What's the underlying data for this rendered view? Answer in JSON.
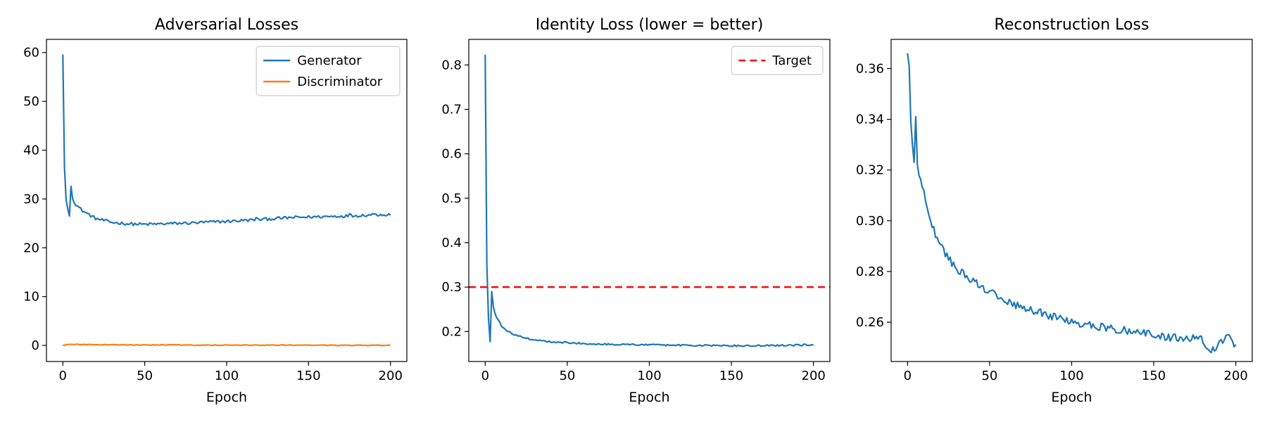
{
  "chart_data": [
    {
      "type": "line",
      "title": "Adversarial Losses",
      "xlabel": "Epoch",
      "ylabel": "",
      "xlim": [
        -10,
        210
      ],
      "ylim": [
        -3.3,
        62.7
      ],
      "xticks": [
        0,
        50,
        100,
        150,
        200
      ],
      "yticks": [
        0,
        10,
        20,
        30,
        40,
        50,
        60
      ],
      "ytick_decimals": 0,
      "legend": "top-right",
      "grid": false,
      "series": [
        {
          "name": "Generator",
          "color": "#1f77b4",
          "dash": "",
          "anchors": [
            [
              0,
              59.6
            ],
            [
              1,
              36.5
            ],
            [
              2,
              29.8
            ],
            [
              3,
              28.0
            ],
            [
              4,
              26.5
            ],
            [
              5,
              32.6
            ],
            [
              6,
              30.0
            ],
            [
              8,
              28.9
            ],
            [
              10,
              28.2
            ],
            [
              12,
              27.6
            ],
            [
              15,
              27.0
            ],
            [
              20,
              26.0
            ],
            [
              25,
              25.6
            ],
            [
              30,
              25.2
            ],
            [
              40,
              24.9
            ],
            [
              50,
              24.8
            ],
            [
              60,
              24.9
            ],
            [
              70,
              25.0
            ],
            [
              80,
              25.1
            ],
            [
              90,
              25.3
            ],
            [
              100,
              25.4
            ],
            [
              110,
              25.6
            ],
            [
              120,
              25.8
            ],
            [
              130,
              26.0
            ],
            [
              140,
              26.2
            ],
            [
              150,
              26.3
            ],
            [
              160,
              26.4
            ],
            [
              170,
              26.5
            ],
            [
              180,
              26.6
            ],
            [
              190,
              26.8
            ],
            [
              200,
              26.8
            ]
          ],
          "spikes": [
            [
              5,
              32.6
            ],
            [
              118,
              26.2
            ],
            [
              175,
              27.0
            ],
            [
              189,
              27.0
            ]
          ],
          "noise": 0.3
        },
        {
          "name": "Discriminator",
          "color": "#ff7f0e",
          "dash": "",
          "anchors": [
            [
              0,
              0.05
            ],
            [
              5,
              0.2
            ],
            [
              20,
              0.15
            ],
            [
              50,
              0.1
            ],
            [
              100,
              0.05
            ],
            [
              150,
              0.05
            ],
            [
              200,
              0.0
            ]
          ],
          "spikes": [],
          "noise": 0.07
        }
      ]
    },
    {
      "type": "line",
      "title": "Identity Loss (lower = better)",
      "xlabel": "Epoch",
      "ylabel": "",
      "xlim": [
        -10,
        210
      ],
      "ylim": [
        0.1325,
        0.8575
      ],
      "xticks": [
        0,
        50,
        100,
        150,
        200
      ],
      "yticks": [
        0.2,
        0.3,
        0.4,
        0.5,
        0.6,
        0.7,
        0.8
      ],
      "ytick_decimals": 1,
      "legend": "top-right",
      "grid": false,
      "series": [
        {
          "name": "",
          "color": "#1f77b4",
          "dash": "",
          "anchors": [
            [
              0,
              0.823
            ],
            [
              1,
              0.35
            ],
            [
              2,
              0.23
            ],
            [
              3,
              0.177
            ],
            [
              4,
              0.29
            ],
            [
              5,
              0.255
            ],
            [
              6,
              0.24
            ],
            [
              8,
              0.225
            ],
            [
              10,
              0.212
            ],
            [
              12,
              0.205
            ],
            [
              15,
              0.198
            ],
            [
              20,
              0.19
            ],
            [
              25,
              0.185
            ],
            [
              30,
              0.181
            ],
            [
              40,
              0.177
            ],
            [
              50,
              0.175
            ],
            [
              60,
              0.173
            ],
            [
              70,
              0.172
            ],
            [
              80,
              0.171
            ],
            [
              100,
              0.17
            ],
            [
              120,
              0.169
            ],
            [
              150,
              0.168
            ],
            [
              170,
              0.168
            ],
            [
              200,
              0.17
            ]
          ],
          "spikes": [],
          "noise": 0.0018
        }
      ],
      "hlines": [
        {
          "name": "Target",
          "y": 0.3,
          "color": "#ff0000",
          "dash": "10 6"
        }
      ]
    },
    {
      "type": "line",
      "title": "Reconstruction Loss",
      "xlabel": "Epoch",
      "ylabel": "",
      "xlim": [
        -10,
        210
      ],
      "ylim": [
        0.2445,
        0.3715
      ],
      "xticks": [
        0,
        50,
        100,
        150,
        200
      ],
      "yticks": [
        0.26,
        0.28,
        0.3,
        0.32,
        0.34,
        0.36
      ],
      "ytick_decimals": 2,
      "legend": "none",
      "grid": false,
      "series": [
        {
          "name": "",
          "color": "#1f77b4",
          "dash": "",
          "anchors": [
            [
              0,
              0.366
            ],
            [
              1,
              0.361
            ],
            [
              2,
              0.339
            ],
            [
              3,
              0.33
            ],
            [
              4,
              0.323
            ],
            [
              5,
              0.341
            ],
            [
              6,
              0.322
            ],
            [
              8,
              0.316
            ],
            [
              10,
              0.311
            ],
            [
              12,
              0.306
            ],
            [
              15,
              0.298
            ],
            [
              20,
              0.29
            ],
            [
              25,
              0.285
            ],
            [
              30,
              0.281
            ],
            [
              40,
              0.276
            ],
            [
              50,
              0.272
            ],
            [
              60,
              0.268
            ],
            [
              70,
              0.266
            ],
            [
              80,
              0.264
            ],
            [
              90,
              0.262
            ],
            [
              100,
              0.26
            ],
            [
              110,
              0.259
            ],
            [
              120,
              0.258
            ],
            [
              130,
              0.257
            ],
            [
              140,
              0.256
            ],
            [
              150,
              0.255
            ],
            [
              160,
              0.254
            ],
            [
              170,
              0.254
            ],
            [
              180,
              0.253
            ],
            [
              185,
              0.248
            ],
            [
              190,
              0.252
            ],
            [
              195,
              0.255
            ],
            [
              200,
              0.25
            ]
          ],
          "spikes": [
            [
              5,
              0.341
            ],
            [
              185,
              0.248
            ],
            [
              195,
              0.255
            ]
          ],
          "noise": 0.0015
        }
      ]
    }
  ]
}
